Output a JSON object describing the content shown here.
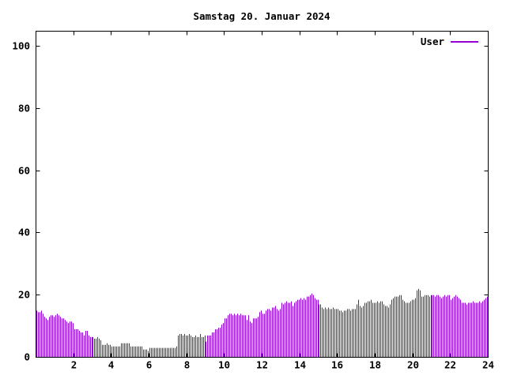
{
  "title": "Samstag 20. Januar 2024",
  "legend": {
    "label": "User",
    "position": "top-right-inside"
  },
  "colors": {
    "series": "#9400d3",
    "axis": "#000000",
    "background": "#ffffff",
    "text": "#000000"
  },
  "chart_data": {
    "type": "bar",
    "style": "impulses",
    "title": "Samstag 20. Januar 2024",
    "xlabel": "",
    "ylabel": "",
    "xlim": [
      0,
      24
    ],
    "ylim": [
      0,
      105
    ],
    "xticks": [
      2,
      4,
      6,
      8,
      10,
      12,
      14,
      16,
      18,
      20,
      22,
      24
    ],
    "yticks": [
      0,
      20,
      40,
      60,
      80,
      100
    ],
    "grid": false,
    "legend_position": "top-right",
    "sample_interval_minutes": 5,
    "series": [
      {
        "name": "User",
        "color": "#9400d3",
        "values": [
          15,
          14.5,
          14.5,
          15,
          14,
          13,
          12.5,
          12,
          13,
          13.5,
          13.5,
          13,
          13.5,
          14,
          13.5,
          13,
          12.5,
          12.5,
          12,
          11.5,
          11,
          11.5,
          11.5,
          11,
          9,
          9,
          9,
          8.5,
          8,
          8,
          7,
          8.5,
          8.5,
          7,
          6.5,
          6.5,
          6.5,
          6,
          6,
          6.5,
          6,
          5.5,
          4,
          4,
          4,
          4.5,
          4,
          4,
          3.5,
          3.5,
          3.5,
          3.5,
          3.5,
          3.5,
          4.5,
          4.5,
          4.5,
          4.5,
          4.5,
          4.5,
          3.5,
          3.5,
          3.5,
          3.5,
          3.5,
          3.5,
          3.5,
          3.5,
          2.5,
          2.5,
          2.5,
          2,
          3,
          3,
          3,
          3,
          3,
          3,
          3,
          3,
          3,
          3,
          3,
          3,
          3,
          3,
          3,
          3,
          3,
          3.5,
          7,
          7.5,
          7.5,
          7,
          7.5,
          7,
          7,
          7.5,
          7,
          6.5,
          6.5,
          7,
          6.5,
          6.5,
          7.5,
          6.5,
          6.5,
          7,
          5,
          7,
          7,
          7,
          8,
          8,
          9,
          9,
          9.5,
          9.5,
          10.5,
          11,
          12.5,
          12.5,
          13.5,
          14,
          14,
          13.5,
          14,
          13.5,
          14,
          13.5,
          14,
          13.5,
          13.5,
          13.5,
          12,
          13.5,
          11.5,
          11,
          12.5,
          12.5,
          12.5,
          13,
          14.5,
          15,
          14,
          14,
          15,
          15.5,
          15.5,
          15,
          16,
          16,
          16.5,
          15.5,
          15,
          15.5,
          17.5,
          17,
          17.5,
          18,
          17.5,
          17.5,
          18,
          16.5,
          17.5,
          18,
          18.5,
          18.5,
          19,
          18.5,
          19,
          18.5,
          19.5,
          19.5,
          20,
          20.5,
          20,
          19,
          18.5,
          18.5,
          17,
          17,
          16,
          15.5,
          16,
          15.5,
          16,
          15.5,
          15.5,
          16,
          15.5,
          15.5,
          15.5,
          15,
          15,
          14.5,
          15,
          15,
          15.5,
          15.5,
          15,
          15.5,
          15.5,
          15.5,
          17,
          18.5,
          16.5,
          16,
          16.5,
          17.5,
          17.5,
          18,
          18,
          18.5,
          17.5,
          17.5,
          17.5,
          18,
          17.5,
          18,
          18,
          17,
          16.5,
          16.5,
          16,
          17,
          18.5,
          19,
          19.5,
          19.5,
          19.5,
          20,
          20,
          18.5,
          18,
          17.5,
          17.5,
          17.5,
          18,
          18.5,
          18.5,
          19,
          21.5,
          22,
          21.5,
          19.5,
          19.5,
          20,
          20,
          20,
          19.5,
          20,
          20,
          20,
          19.5,
          20,
          20,
          19.5,
          19,
          19.5,
          20,
          19.5,
          20,
          20,
          18.5,
          19,
          19.5,
          20,
          19.5,
          19,
          18.5,
          17.5,
          17.5,
          17.5,
          17,
          17.5,
          17.5,
          17.5,
          18,
          17.5,
          17.5,
          17.5,
          18,
          17.5,
          18,
          18.5,
          19,
          19.5
        ]
      }
    ]
  }
}
